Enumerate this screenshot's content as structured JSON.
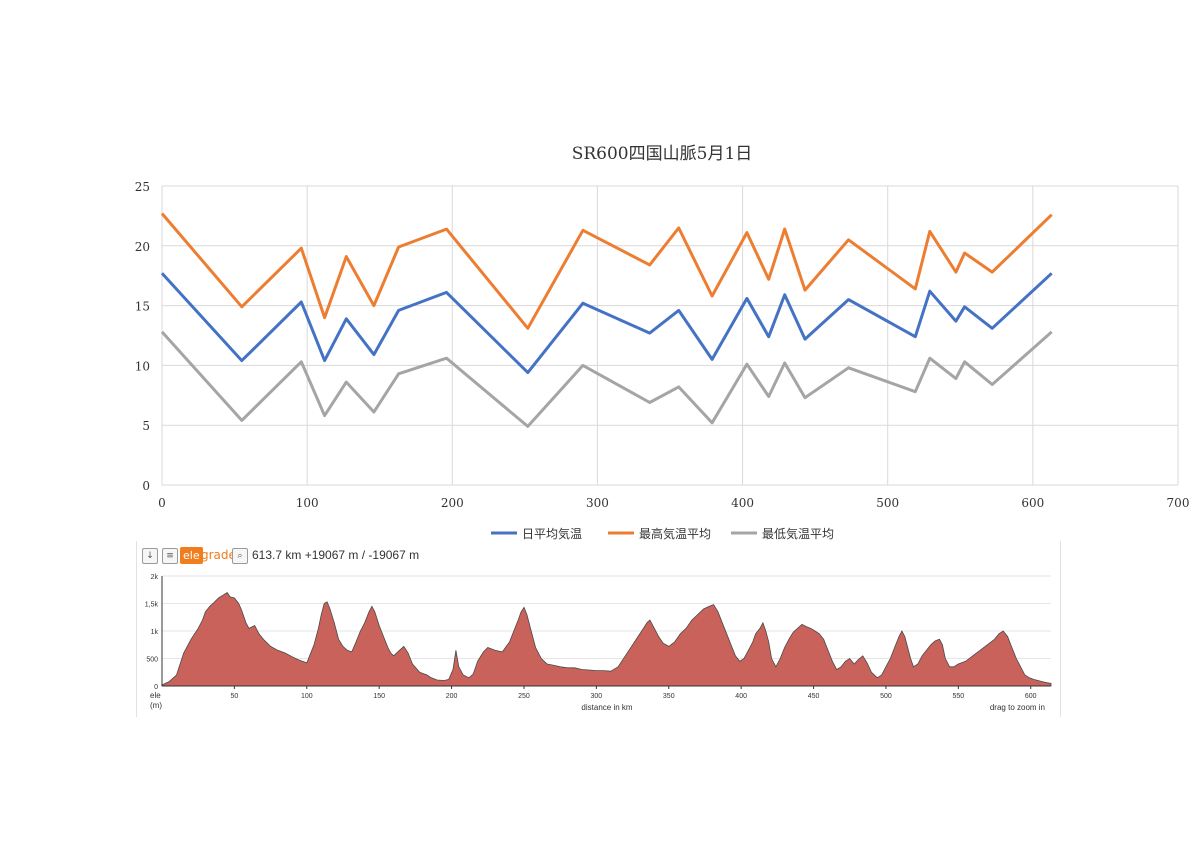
{
  "chart_data": [
    {
      "type": "line",
      "title": "SR600四国山脈5月1日",
      "xlim": [
        0,
        700
      ],
      "ylim": [
        0,
        25
      ],
      "x_ticks": [
        "0",
        "100",
        "200",
        "300",
        "400",
        "500",
        "600",
        "700"
      ],
      "y_ticks": [
        "0",
        "5",
        "10",
        "15",
        "20",
        "25"
      ],
      "grid": true,
      "legend_position": "bottom",
      "series": [
        {
          "name": "日平均気温",
          "color": "#4472c4",
          "points": [
            [
              0,
              17.7
            ],
            [
              55,
              10.4
            ],
            [
              96,
              15.3
            ],
            [
              112,
              10.4
            ],
            [
              127,
              13.9
            ],
            [
              146,
              10.9
            ],
            [
              163,
              14.6
            ],
            [
              196,
              16.1
            ],
            [
              252,
              9.4
            ],
            [
              290,
              15.2
            ],
            [
              336,
              12.7
            ],
            [
              356,
              14.6
            ],
            [
              379,
              10.5
            ],
            [
              403,
              15.6
            ],
            [
              418,
              12.4
            ],
            [
              429,
              15.9
            ],
            [
              443,
              12.2
            ],
            [
              473,
              15.5
            ],
            [
              519,
              12.4
            ],
            [
              529,
              16.2
            ],
            [
              547,
              13.7
            ],
            [
              553,
              14.9
            ],
            [
              572,
              13.1
            ],
            [
              613,
              17.7
            ]
          ]
        },
        {
          "name": "最高気温平均",
          "color": "#ed7d31",
          "points": [
            [
              0,
              22.7
            ],
            [
              55,
              14.9
            ],
            [
              96,
              19.8
            ],
            [
              112,
              14.0
            ],
            [
              127,
              19.1
            ],
            [
              146,
              15.0
            ],
            [
              163,
              19.9
            ],
            [
              196,
              21.4
            ],
            [
              252,
              13.1
            ],
            [
              290,
              21.3
            ],
            [
              336,
              18.4
            ],
            [
              356,
              21.5
            ],
            [
              379,
              15.8
            ],
            [
              403,
              21.1
            ],
            [
              418,
              17.2
            ],
            [
              429,
              21.4
            ],
            [
              443,
              16.3
            ],
            [
              473,
              20.5
            ],
            [
              519,
              16.4
            ],
            [
              529,
              21.2
            ],
            [
              547,
              17.8
            ],
            [
              553,
              19.4
            ],
            [
              572,
              17.8
            ],
            [
              613,
              22.6
            ]
          ]
        },
        {
          "name": "最低気温平均",
          "color": "#a5a5a5",
          "points": [
            [
              0,
              12.8
            ],
            [
              55,
              5.4
            ],
            [
              96,
              10.3
            ],
            [
              112,
              5.8
            ],
            [
              127,
              8.6
            ],
            [
              146,
              6.1
            ],
            [
              163,
              9.3
            ],
            [
              196,
              10.6
            ],
            [
              252,
              4.9
            ],
            [
              290,
              10.0
            ],
            [
              336,
              6.9
            ],
            [
              356,
              8.2
            ],
            [
              379,
              5.2
            ],
            [
              403,
              10.1
            ],
            [
              418,
              7.4
            ],
            [
              429,
              10.2
            ],
            [
              443,
              7.3
            ],
            [
              473,
              9.8
            ],
            [
              519,
              7.8
            ],
            [
              529,
              10.6
            ],
            [
              547,
              8.9
            ],
            [
              553,
              10.3
            ],
            [
              572,
              8.4
            ],
            [
              613,
              12.8
            ]
          ]
        }
      ]
    },
    {
      "type": "area",
      "color": "#c8625a",
      "xlabel": "distance in km",
      "ylabel": "ele",
      "yunit": "(m)",
      "xlim": [
        0,
        614
      ],
      "ylim": [
        0,
        2000
      ],
      "x_ticks": [
        "50",
        "100",
        "150",
        "200",
        "250",
        "300",
        "350",
        "400",
        "450",
        "500",
        "550",
        "600"
      ],
      "y_ticks": [
        "0",
        "500",
        "1k",
        "1,5k",
        "2k"
      ],
      "points": [
        [
          0,
          20
        ],
        [
          5,
          80
        ],
        [
          10,
          200
        ],
        [
          15,
          600
        ],
        [
          20,
          850
        ],
        [
          25,
          1050
        ],
        [
          28,
          1200
        ],
        [
          30,
          1350
        ],
        [
          33,
          1450
        ],
        [
          36,
          1520
        ],
        [
          39,
          1600
        ],
        [
          42,
          1650
        ],
        [
          45,
          1700
        ],
        [
          47,
          1620
        ],
        [
          50,
          1600
        ],
        [
          53,
          1500
        ],
        [
          55,
          1380
        ],
        [
          58,
          1150
        ],
        [
          60,
          1050
        ],
        [
          64,
          1100
        ],
        [
          67,
          950
        ],
        [
          70,
          850
        ],
        [
          75,
          720
        ],
        [
          80,
          650
        ],
        [
          85,
          600
        ],
        [
          90,
          530
        ],
        [
          95,
          470
        ],
        [
          98,
          440
        ],
        [
          100,
          420
        ],
        [
          105,
          750
        ],
        [
          108,
          1050
        ],
        [
          110,
          1300
        ],
        [
          112,
          1500
        ],
        [
          114,
          1530
        ],
        [
          116,
          1400
        ],
        [
          119,
          1150
        ],
        [
          122,
          850
        ],
        [
          125,
          720
        ],
        [
          128,
          650
        ],
        [
          131,
          620
        ],
        [
          134,
          800
        ],
        [
          137,
          1000
        ],
        [
          140,
          1150
        ],
        [
          143,
          1350
        ],
        [
          145,
          1450
        ],
        [
          147,
          1350
        ],
        [
          150,
          1100
        ],
        [
          153,
          900
        ],
        [
          156,
          700
        ],
        [
          158,
          600
        ],
        [
          160,
          550
        ],
        [
          164,
          650
        ],
        [
          167,
          720
        ],
        [
          170,
          600
        ],
        [
          173,
          400
        ],
        [
          178,
          250
        ],
        [
          183,
          200
        ],
        [
          186,
          150
        ],
        [
          190,
          110
        ],
        [
          195,
          100
        ],
        [
          198,
          120
        ],
        [
          201,
          300
        ],
        [
          203,
          650
        ],
        [
          205,
          350
        ],
        [
          208,
          200
        ],
        [
          212,
          150
        ],
        [
          215,
          220
        ],
        [
          218,
          450
        ],
        [
          222,
          620
        ],
        [
          225,
          700
        ],
        [
          230,
          650
        ],
        [
          235,
          620
        ],
        [
          240,
          800
        ],
        [
          243,
          1000
        ],
        [
          246,
          1200
        ],
        [
          248,
          1350
        ],
        [
          250,
          1430
        ],
        [
          252,
          1300
        ],
        [
          255,
          1000
        ],
        [
          258,
          700
        ],
        [
          262,
          500
        ],
        [
          266,
          400
        ],
        [
          270,
          380
        ],
        [
          275,
          350
        ],
        [
          280,
          330
        ],
        [
          285,
          330
        ],
        [
          290,
          300
        ],
        [
          295,
          290
        ],
        [
          300,
          280
        ],
        [
          305,
          280
        ],
        [
          310,
          270
        ],
        [
          315,
          350
        ],
        [
          320,
          550
        ],
        [
          325,
          750
        ],
        [
          330,
          950
        ],
        [
          335,
          1150
        ],
        [
          337,
          1200
        ],
        [
          340,
          1050
        ],
        [
          343,
          900
        ],
        [
          346,
          780
        ],
        [
          350,
          720
        ],
        [
          354,
          800
        ],
        [
          358,
          950
        ],
        [
          362,
          1050
        ],
        [
          366,
          1200
        ],
        [
          370,
          1300
        ],
        [
          374,
          1400
        ],
        [
          378,
          1450
        ],
        [
          381,
          1480
        ],
        [
          384,
          1350
        ],
        [
          387,
          1150
        ],
        [
          390,
          950
        ],
        [
          393,
          750
        ],
        [
          396,
          550
        ],
        [
          399,
          450
        ],
        [
          402,
          500
        ],
        [
          405,
          650
        ],
        [
          408,
          800
        ],
        [
          410,
          950
        ],
        [
          413,
          1050
        ],
        [
          415,
          1150
        ],
        [
          417,
          1000
        ],
        [
          419,
          800
        ],
        [
          421,
          500
        ],
        [
          424,
          350
        ],
        [
          427,
          500
        ],
        [
          430,
          700
        ],
        [
          433,
          850
        ],
        [
          436,
          980
        ],
        [
          439,
          1050
        ],
        [
          442,
          1120
        ],
        [
          445,
          1080
        ],
        [
          448,
          1050
        ],
        [
          451,
          1000
        ],
        [
          454,
          950
        ],
        [
          457,
          850
        ],
        [
          460,
          650
        ],
        [
          463,
          450
        ],
        [
          466,
          300
        ],
        [
          469,
          350
        ],
        [
          472,
          450
        ],
        [
          475,
          500
        ],
        [
          478,
          400
        ],
        [
          481,
          480
        ],
        [
          484,
          550
        ],
        [
          487,
          420
        ],
        [
          490,
          250
        ],
        [
          494,
          150
        ],
        [
          497,
          200
        ],
        [
          500,
          350
        ],
        [
          503,
          500
        ],
        [
          506,
          700
        ],
        [
          509,
          900
        ],
        [
          511,
          1000
        ],
        [
          513,
          900
        ],
        [
          515,
          700
        ],
        [
          517,
          500
        ],
        [
          519,
          350
        ],
        [
          522,
          400
        ],
        [
          525,
          550
        ],
        [
          528,
          650
        ],
        [
          531,
          750
        ],
        [
          534,
          820
        ],
        [
          537,
          850
        ],
        [
          539,
          750
        ],
        [
          541,
          500
        ],
        [
          544,
          350
        ],
        [
          547,
          350
        ],
        [
          550,
          400
        ],
        [
          555,
          450
        ],
        [
          560,
          550
        ],
        [
          565,
          650
        ],
        [
          570,
          750
        ],
        [
          575,
          850
        ],
        [
          578,
          950
        ],
        [
          581,
          1000
        ],
        [
          584,
          900
        ],
        [
          587,
          700
        ],
        [
          590,
          500
        ],
        [
          593,
          350
        ],
        [
          596,
          200
        ],
        [
          599,
          150
        ],
        [
          602,
          120
        ],
        [
          605,
          100
        ],
        [
          608,
          80
        ],
        [
          611,
          60
        ],
        [
          614,
          50
        ]
      ]
    }
  ],
  "ele_panel": {
    "toolbar": {
      "download_icon": "download-icon",
      "menu_icon": "menu-icon",
      "ele_label": "ele",
      "grade_label": "grade",
      "zoom_icon": "magnifier-icon",
      "summary": "613.7 km +19067 m / -19067 m"
    },
    "hint": "drag to zoom in"
  }
}
